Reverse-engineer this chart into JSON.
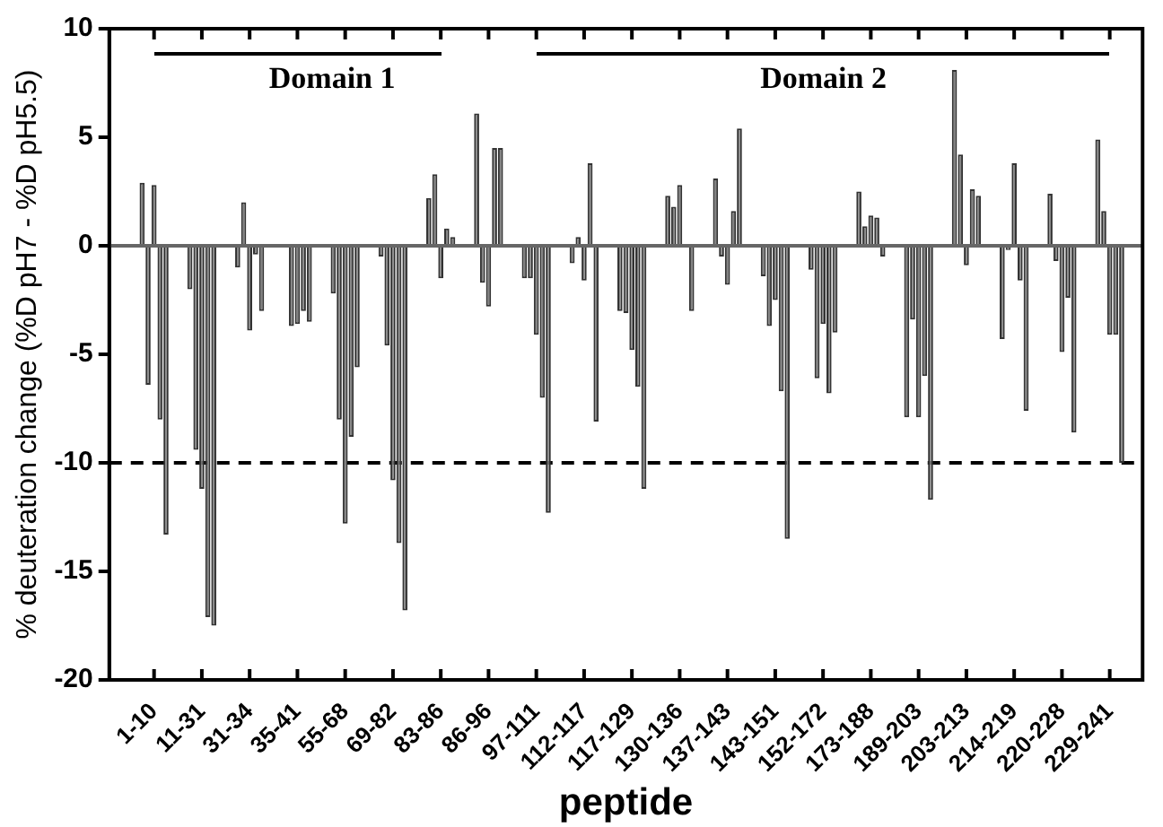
{
  "chart_data": {
    "type": "bar",
    "xlabel": "peptide",
    "ylabel": "% deuteration change (%D pH7 - %D pH5.5)",
    "color": "#808080",
    "categories": [
      null,
      null,
      null,
      null,
      null,
      null,
      null,
      "1-10",
      null,
      null,
      null,
      null,
      null,
      null,
      null,
      "11-31",
      null,
      null,
      null,
      null,
      null,
      null,
      null,
      "31-34",
      null,
      null,
      null,
      null,
      null,
      null,
      null,
      "35-41",
      null,
      null,
      null,
      null,
      null,
      null,
      null,
      "55-68",
      null,
      null,
      null,
      null,
      null,
      null,
      null,
      "69-82",
      null,
      null,
      null,
      null,
      null,
      null,
      null,
      "83-86",
      null,
      null,
      null,
      null,
      null,
      null,
      null,
      "86-96",
      null,
      null,
      null,
      null,
      null,
      null,
      null,
      "97-111",
      null,
      null,
      null,
      null,
      null,
      null,
      null,
      "112-117",
      null,
      null,
      null,
      null,
      null,
      null,
      null,
      "117-129",
      null,
      null,
      null,
      null,
      null,
      null,
      null,
      "130-136",
      null,
      null,
      null,
      null,
      null,
      null,
      null,
      "137-143",
      null,
      null,
      null,
      null,
      null,
      null,
      null,
      "143-151",
      null,
      null,
      null,
      null,
      null,
      null,
      null,
      "152-172",
      null,
      null,
      null,
      null,
      null,
      null,
      null,
      "173-188",
      null,
      null,
      null,
      null,
      null,
      null,
      null,
      "189-203",
      null,
      null,
      null,
      null,
      null,
      null,
      null,
      "203-213",
      null,
      null,
      null,
      null,
      null,
      null,
      null,
      "214-219",
      null,
      null,
      null,
      null,
      null,
      null,
      null,
      "220-228",
      null,
      null,
      null,
      null,
      null,
      null,
      null,
      "229-241",
      null,
      null,
      null,
      null,
      null
    ],
    "values": [
      null,
      null,
      null,
      null,
      null,
      2.9,
      -6.4,
      2.8,
      -8.0,
      -13.3,
      null,
      null,
      null,
      -2.0,
      -9.4,
      -11.2,
      -17.1,
      -17.5,
      null,
      null,
      null,
      -1.0,
      2.0,
      -3.9,
      -0.4,
      -3.0,
      null,
      null,
      null,
      null,
      -3.7,
      -3.6,
      -3.0,
      -3.5,
      null,
      null,
      null,
      -2.2,
      -8.0,
      -12.8,
      -8.8,
      -5.6,
      null,
      null,
      null,
      -0.5,
      -4.6,
      -10.8,
      -13.7,
      -16.8,
      null,
      null,
      null,
      2.2,
      3.3,
      -1.5,
      0.8,
      0.4,
      null,
      null,
      null,
      6.1,
      -1.7,
      -2.8,
      4.5,
      4.5,
      null,
      null,
      null,
      -1.5,
      -1.5,
      -4.1,
      -7.0,
      -12.3,
      null,
      null,
      null,
      -0.8,
      0.4,
      -1.6,
      3.8,
      -8.1,
      null,
      null,
      null,
      -3.0,
      -3.1,
      -4.8,
      -6.5,
      -11.2,
      null,
      null,
      null,
      2.3,
      1.8,
      2.8,
      null,
      -3.0,
      null,
      null,
      null,
      3.1,
      -0.5,
      -1.8,
      1.6,
      5.4,
      null,
      null,
      null,
      -1.4,
      -3.7,
      -2.5,
      -6.7,
      -13.5,
      null,
      null,
      null,
      -1.1,
      -6.1,
      -3.6,
      -6.8,
      -4.0,
      null,
      null,
      null,
      2.5,
      0.9,
      1.4,
      1.3,
      -0.5,
      null,
      null,
      null,
      -7.9,
      -3.4,
      -7.9,
      -6.0,
      -11.7,
      null,
      null,
      null,
      8.1,
      4.2,
      -0.9,
      2.6,
      2.3,
      null,
      null,
      null,
      -4.3,
      -0.2,
      3.8,
      -1.6,
      -7.6,
      null,
      null,
      null,
      2.4,
      -0.7,
      -4.9,
      -2.4,
      -8.6,
      null,
      null,
      null,
      4.9,
      1.6,
      -4.1,
      -4.1,
      -10.0,
      null,
      null,
      null
    ],
    "ylim": [
      -20,
      10
    ],
    "yticks": [
      -20,
      -15,
      -10,
      -5,
      0,
      5,
      10
    ],
    "ref_lines": [
      {
        "axis": "y",
        "value": 0,
        "color": "#666666",
        "line_style": "solid"
      },
      {
        "axis": "y",
        "value": -10,
        "color": "#000000",
        "line_style": "dashed"
      }
    ],
    "annotations": [
      "Domain 1",
      "Domain 2"
    ]
  }
}
